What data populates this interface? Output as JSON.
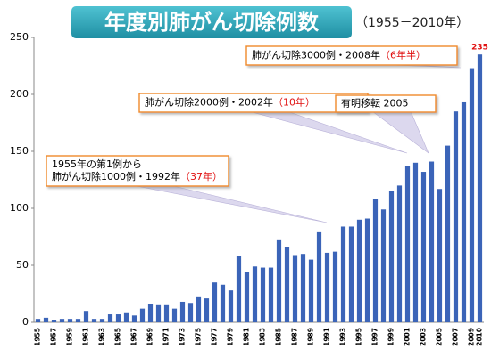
{
  "chart_data": {
    "type": "bar",
    "title": "年度別肺がん切除例数",
    "subtitle": "（1955－2010年）",
    "categories": [
      "1955",
      null,
      "1957",
      null,
      "1959",
      null,
      "1961",
      null,
      "1963",
      null,
      "1965",
      null,
      "1967",
      null,
      "1969",
      null,
      "1971",
      null,
      "1973",
      null,
      "1975",
      null,
      "1977",
      null,
      "1979",
      null,
      "1981",
      null,
      "1983",
      null,
      "1985",
      null,
      "1987",
      null,
      "1989",
      null,
      "1991",
      null,
      "1993",
      null,
      "1995",
      null,
      "1997",
      null,
      "1999",
      null,
      "2001",
      null,
      "2003",
      null,
      "2005",
      null,
      "2007",
      null,
      "2009",
      "2010"
    ],
    "values": [
      3,
      4,
      2,
      3,
      3,
      3,
      10,
      3,
      3,
      7,
      7,
      8,
      6,
      12,
      16,
      15,
      15,
      12,
      18,
      17,
      22,
      21,
      35,
      33,
      28,
      58,
      44,
      49,
      48,
      48,
      72,
      66,
      59,
      60,
      55,
      79,
      61,
      62,
      84,
      84,
      90,
      91,
      108,
      99,
      115,
      120,
      137,
      140,
      132,
      141,
      117,
      155,
      185,
      193,
      223,
      235
    ],
    "color": "#3b64b8",
    "ylim": [
      0,
      250
    ],
    "yticks": [
      0,
      50,
      100,
      150,
      200,
      250
    ],
    "grid": false,
    "value_label": "last",
    "highlight": "last",
    "highlight_color": "#e01010",
    "annotations": [
      {
        "text": [
          "肺がん切除3000例・2008年"
        ],
        "note": "（6年半）"
      },
      {
        "text": [
          "肺がん切除2000例・2002年"
        ],
        "note": "（10年）"
      },
      {
        "text": [
          "有明移転 2005"
        ]
      },
      {
        "text": [
          "1955年の第1例から",
          "肺がん切除1000例・1992年"
        ],
        "note": "（37年）"
      }
    ]
  }
}
